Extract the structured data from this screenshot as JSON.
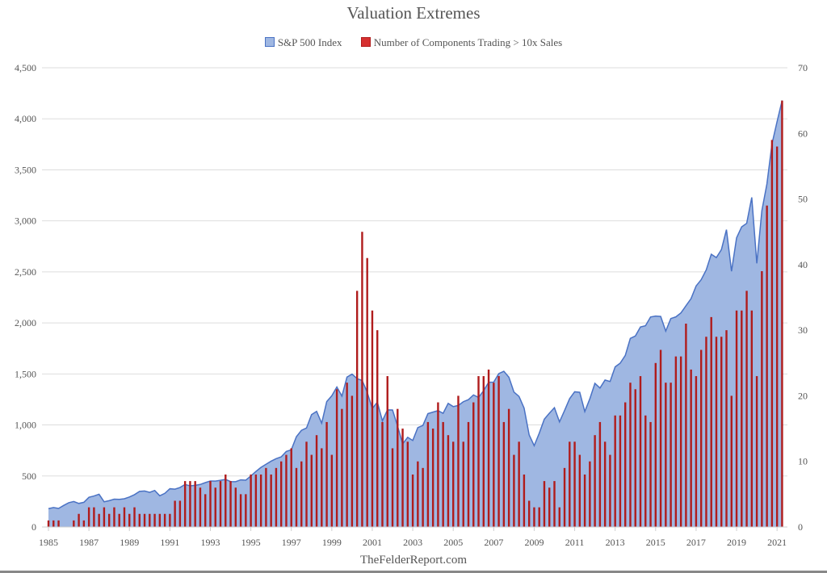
{
  "chart_data": {
    "type": "area+bar",
    "title": "Valuation Extremes",
    "source": "TheFelderReport.com",
    "grid": true,
    "legend_placement": "top",
    "colors": {
      "area_fill": "#9fb7e2",
      "area_line": "#4a72c4",
      "bar": "#b01c1c",
      "grid": "#dddddd"
    },
    "x_start": 1985,
    "x_step": 0.25,
    "x_ticks": [
      "1985",
      "1987",
      "1989",
      "1991",
      "1993",
      "1995",
      "1997",
      "1999",
      "2001",
      "2003",
      "2005",
      "2007",
      "2009",
      "2011",
      "2013",
      "2015",
      "2017",
      "2019",
      "2021"
    ],
    "y_left": {
      "lim": [
        0,
        4500
      ],
      "ticks": [
        "0",
        "500",
        "1,000",
        "1,500",
        "2,000",
        "2,500",
        "3,000",
        "3,500",
        "4,000",
        "4,500"
      ]
    },
    "y_right": {
      "lim": [
        0,
        70
      ],
      "ticks": [
        "0",
        "10",
        "20",
        "30",
        "40",
        "50",
        "60",
        "70"
      ]
    },
    "series": [
      {
        "name": "S&P 500 Index",
        "type": "area",
        "axis": "left",
        "values": [
          180,
          191,
          182,
          211,
          238,
          250,
          231,
          242,
          291,
          304,
          321,
          247,
          258,
          273,
          271,
          277,
          294,
          317,
          349,
          353,
          339,
          358,
          306,
          330,
          375,
          371,
          387,
          417,
          403,
          408,
          417,
          435,
          451,
          450,
          458,
          466,
          445,
          444,
          462,
          459,
          500,
          544,
          584,
          615,
          645,
          670,
          687,
          740,
          757,
          885,
          947,
          970,
          1101,
          1133,
          1017,
          1229,
          1286,
          1372,
          1282,
          1469,
          1498,
          1454,
          1436,
          1320,
          1160,
          1224,
          1040,
          1148,
          1147,
          989,
          815,
          879,
          848,
          974,
          995,
          1111,
          1126,
          1140,
          1114,
          1211,
          1180,
          1191,
          1228,
          1248,
          1294,
          1270,
          1335,
          1418,
          1420,
          1503,
          1526,
          1468,
          1322,
          1280,
          1166,
          903,
          797,
          919,
          1057,
          1115,
          1169,
          1030,
          1141,
          1257,
          1325,
          1320,
          1131,
          1257,
          1408,
          1362,
          1440,
          1426,
          1569,
          1606,
          1681,
          1848,
          1872,
          1960,
          1972,
          2058,
          2067,
          2063,
          1920,
          2043,
          2059,
          2098,
          2168,
          2238,
          2362,
          2423,
          2519,
          2673,
          2640,
          2718,
          2914,
          2506,
          2834,
          2941,
          2976,
          3230,
          2584,
          3100,
          3363,
          3756,
          3972,
          4180
        ]
      },
      {
        "name": "Number of Components Trading > 10x Sales",
        "type": "bar",
        "axis": "right",
        "values": [
          1,
          1,
          1,
          0,
          0,
          1,
          2,
          1,
          3,
          3,
          2,
          3,
          2,
          3,
          2,
          3,
          2,
          3,
          2,
          2,
          2,
          2,
          2,
          2,
          2,
          4,
          4,
          7,
          7,
          7,
          6,
          5,
          7,
          6,
          7,
          8,
          7,
          6,
          5,
          5,
          8,
          8,
          8,
          9,
          8,
          9,
          10,
          11,
          12,
          9,
          10,
          13,
          11,
          14,
          12,
          16,
          11,
          21,
          18,
          22,
          20,
          36,
          45,
          41,
          33,
          30,
          16,
          23,
          12,
          18,
          15,
          13,
          8,
          10,
          9,
          16,
          15,
          19,
          16,
          14,
          13,
          20,
          13,
          16,
          19,
          23,
          23,
          24,
          22,
          23,
          16,
          18,
          11,
          13,
          8,
          4,
          3,
          3,
          7,
          6,
          7,
          3,
          9,
          13,
          13,
          11,
          8,
          10,
          14,
          16,
          13,
          11,
          17,
          17,
          19,
          22,
          21,
          23,
          17,
          16,
          25,
          27,
          22,
          22,
          26,
          26,
          31,
          24,
          23,
          27,
          29,
          32,
          29,
          29,
          30,
          20,
          33,
          33,
          36,
          33,
          23,
          39,
          49,
          59,
          58,
          65
        ]
      }
    ]
  }
}
